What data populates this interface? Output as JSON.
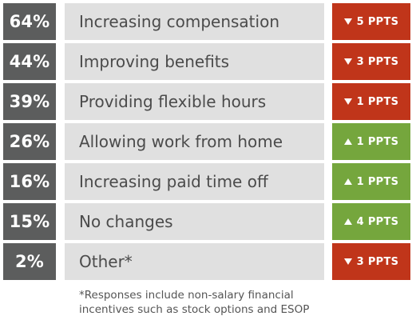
{
  "chart_data": {
    "type": "table",
    "rows": [
      {
        "percent": "64%",
        "label": "Increasing compensation",
        "change": "5 PPTS",
        "direction": "down"
      },
      {
        "percent": "44%",
        "label": "Improving benefits",
        "change": "3 PPTS",
        "direction": "down"
      },
      {
        "percent": "39%",
        "label": "Providing flexible hours",
        "change": "1 PPTS",
        "direction": "down"
      },
      {
        "percent": "26%",
        "label": "Allowing work from home",
        "change": "1 PPTS",
        "direction": "up"
      },
      {
        "percent": "16%",
        "label": "Increasing paid time off",
        "change": "1 PPTS",
        "direction": "up"
      },
      {
        "percent": "15%",
        "label": "No changes",
        "change": "4 PPTS",
        "direction": "up"
      },
      {
        "percent": "2%",
        "label": "Other*",
        "change": "3 PPTS",
        "direction": "down"
      }
    ],
    "values": [
      64,
      44,
      39,
      26,
      16,
      15,
      2
    ],
    "change_values": [
      -5,
      -3,
      -1,
      1,
      1,
      4,
      -3
    ],
    "colors": {
      "percent_bg": "#5c5d5d",
      "label_bg": "#e0e0e0",
      "down": "#c0351a",
      "up": "#75a63d"
    }
  },
  "footnote": {
    "line1": "*Responses include non-salary financial",
    "line2": "incentives such as stock options and ESOP"
  }
}
